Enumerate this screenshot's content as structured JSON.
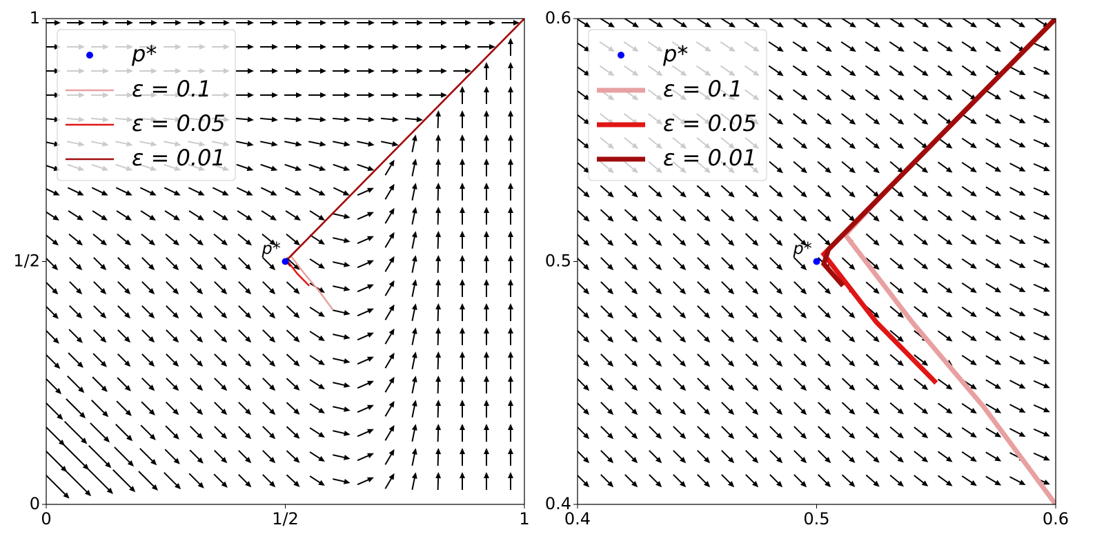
{
  "chart_data": [
    {
      "type": "line",
      "xlim": [
        0,
        1
      ],
      "ylim": [
        0,
        1
      ],
      "xticks": [
        0,
        {
          "value": 0.5,
          "label": "1/2"
        },
        1
      ],
      "yticks": [
        0,
        {
          "value": 0.5,
          "label": "1/2"
        },
        1
      ],
      "legend": "upper left",
      "point": {
        "name": "p*",
        "x": 0.5,
        "y": 0.5,
        "color": "#0000ff"
      },
      "annotation": "p*",
      "series": [
        {
          "name": "ε = 0.1",
          "color": "#e8a0a0",
          "x": [
            0.6,
            0.57,
            0.54,
            0.512,
            0.53,
            1
          ],
          "y": [
            0.4,
            0.44,
            0.475,
            0.511,
            0.53,
            1
          ]
        },
        {
          "name": "ε = 0.05",
          "color": "#e01515",
          "x": [
            0.55,
            0.525,
            0.503,
            0.51,
            1
          ],
          "y": [
            0.45,
            0.475,
            0.503,
            0.51,
            1
          ]
        },
        {
          "name": "ε = 0.01",
          "color": "#a00c0c",
          "x": [
            0.511,
            0.503,
            0.505,
            1
          ],
          "y": [
            0.49,
            0.499,
            0.505,
            1
          ]
        }
      ]
    },
    {
      "type": "line",
      "xlim": [
        0.4,
        0.6
      ],
      "ylim": [
        0.4,
        0.6
      ],
      "xticks": [
        0.4,
        0.5,
        0.6
      ],
      "yticks": [
        0.4,
        0.5,
        0.6
      ],
      "legend": "upper left",
      "point": {
        "name": "p*",
        "x": 0.5,
        "y": 0.5,
        "color": "#0000ff"
      },
      "annotation": "p*",
      "series": [
        {
          "name": "ε = 0.1",
          "color": "#e8a0a0",
          "x": [
            0.6,
            0.57,
            0.54,
            0.512,
            0.53,
            0.6
          ],
          "y": [
            0.4,
            0.44,
            0.475,
            0.511,
            0.53,
            0.6
          ]
        },
        {
          "name": "ε = 0.05",
          "color": "#e01515",
          "x": [
            0.55,
            0.525,
            0.503,
            0.51,
            0.6
          ],
          "y": [
            0.45,
            0.475,
            0.503,
            0.51,
            0.6
          ]
        },
        {
          "name": "ε = 0.01",
          "color": "#a00c0c",
          "x": [
            0.511,
            0.503,
            0.505,
            0.6
          ],
          "y": [
            0.49,
            0.499,
            0.505,
            0.6
          ]
        }
      ]
    }
  ]
}
